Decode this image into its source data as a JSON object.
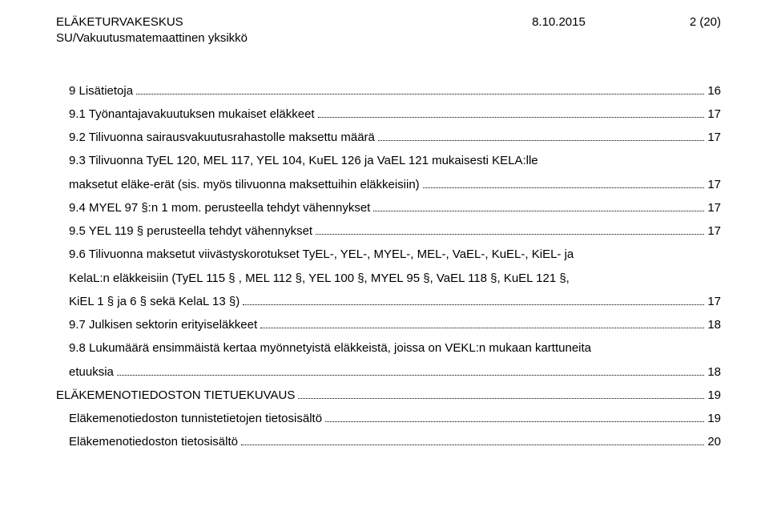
{
  "header": {
    "org": "ELÄKETURVAKESKUS",
    "subunit": "SU/Vakuutusmatemaattinen yksikkö",
    "date": "8.10.2015",
    "pagenum": "2 (20)"
  },
  "toc": [
    {
      "indent": 1,
      "label": "9 Lisätietoja",
      "page": "16"
    },
    {
      "indent": 1,
      "label": "9.1 Työnantajavakuutuksen mukaiset eläkkeet",
      "page": "17"
    },
    {
      "indent": 1,
      "label": "9.2 Tilivuonna sairausvakuutusrahastolle maksettu määrä",
      "page": "17"
    },
    {
      "indent": 1,
      "label": "9.3 Tilivuonna TyEL 120, MEL 117, YEL 104, KuEL 126 ja VaEL 121 mukaisesti KELA:lle",
      "cont": "maksetut eläke-erät (sis. myös tilivuonna maksettuihin eläkkeisiin)",
      "page": "17"
    },
    {
      "indent": 1,
      "label": "9.4 MYEL 97 §:n 1 mom. perusteella tehdyt vähennykset",
      "page": "17"
    },
    {
      "indent": 1,
      "label": "9.5 YEL 119 § perusteella tehdyt vähennykset",
      "page": "17"
    },
    {
      "indent": 1,
      "label": "9.6 Tilivuonna maksetut viivästyskorotukset TyEL-, YEL-, MYEL-, MEL-, VaEL-, KuEL-, KiEL- ja",
      "cont": "KelaL:n eläkkeisiin (TyEL 115 § , MEL 112 §, YEL 100 §, MYEL 95 §, VaEL 118 §, KuEL 121 §,",
      "cont2": "KiEL 1 § ja 6 § sekä KelaL 13 §)",
      "page": "17"
    },
    {
      "indent": 1,
      "label": "9.7 Julkisen sektorin erityiseläkkeet",
      "page": "18"
    },
    {
      "indent": 1,
      "label": "9.8 Lukumäärä ensimmäistä kertaa myönnetyistä eläkkeistä, joissa on VEKL:n mukaan karttuneita",
      "cont": "etuuksia",
      "page": "18"
    },
    {
      "indent": 0,
      "label": "ELÄKEMENOTIEDOSTON TIETUEKUVAUS",
      "page": "19"
    },
    {
      "indent": 1,
      "label": "Eläkemenotiedoston tunnistetietojen tietosisältö",
      "page": "19"
    },
    {
      "indent": 1,
      "label": "Eläkemenotiedoston tietosisältö",
      "page": "20"
    }
  ]
}
